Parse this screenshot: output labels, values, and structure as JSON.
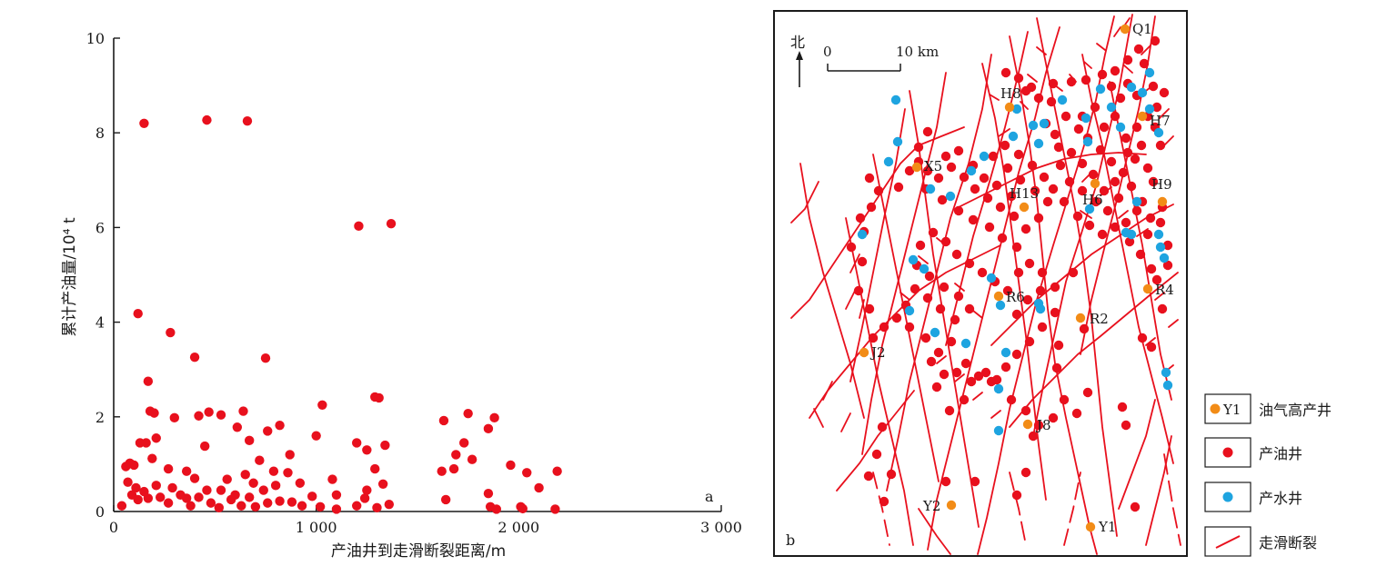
{
  "colors": {
    "oil_well": "#e8101d",
    "water_well": "#1ea4e0",
    "high_yield_well": "#f28c17",
    "fault": "#e8101d",
    "axis": "#1a1a1a"
  },
  "chart_data": [
    {
      "panel_label": "a",
      "type": "scatter",
      "title": "",
      "xlabel": "产油井到走滑断裂距离/m",
      "ylabel": "累计产油量/10⁴ t",
      "xlim": [
        0,
        3000
      ],
      "ylim": [
        0,
        10
      ],
      "xticks": [
        0,
        1000,
        2000,
        3000
      ],
      "xtick_labels": [
        "0",
        "1 000",
        "2 000",
        "3 000"
      ],
      "yticks": [
        0,
        2,
        4,
        6,
        8,
        10
      ],
      "ytick_labels": [
        "0",
        "2",
        "4",
        "6",
        "8",
        "10"
      ],
      "grid": false,
      "points": [
        [
          150,
          8.2
        ],
        [
          460,
          8.27
        ],
        [
          660,
          8.25
        ],
        [
          1210,
          6.03
        ],
        [
          1370,
          6.08
        ],
        [
          120,
          4.18
        ],
        [
          280,
          3.78
        ],
        [
          400,
          3.26
        ],
        [
          750,
          3.24
        ],
        [
          170,
          2.75
        ],
        [
          1030,
          2.25
        ],
        [
          1290,
          2.42
        ],
        [
          1310,
          2.4
        ],
        [
          180,
          2.12
        ],
        [
          200,
          2.08
        ],
        [
          420,
          2.02
        ],
        [
          470,
          2.1
        ],
        [
          530,
          2.04
        ],
        [
          640,
          2.12
        ],
        [
          1630,
          1.92
        ],
        [
          1750,
          2.07
        ],
        [
          1880,
          1.98
        ],
        [
          300,
          1.98
        ],
        [
          610,
          1.78
        ],
        [
          760,
          1.7
        ],
        [
          820,
          1.82
        ],
        [
          1000,
          1.6
        ],
        [
          1200,
          1.45
        ],
        [
          1250,
          1.3
        ],
        [
          1340,
          1.4
        ],
        [
          1690,
          1.2
        ],
        [
          1730,
          1.45
        ],
        [
          1850,
          1.75
        ],
        [
          130,
          1.45
        ],
        [
          160,
          1.45
        ],
        [
          210,
          1.55
        ],
        [
          450,
          1.38
        ],
        [
          670,
          1.5
        ],
        [
          870,
          1.2
        ],
        [
          60,
          0.95
        ],
        [
          80,
          1.02
        ],
        [
          100,
          0.98
        ],
        [
          190,
          1.12
        ],
        [
          270,
          0.9
        ],
        [
          360,
          0.85
        ],
        [
          720,
          1.08
        ],
        [
          790,
          0.85
        ],
        [
          860,
          0.82
        ],
        [
          1080,
          0.68
        ],
        [
          1290,
          0.9
        ],
        [
          1620,
          0.85
        ],
        [
          1680,
          0.9
        ],
        [
          1770,
          1.1
        ],
        [
          1960,
          0.98
        ],
        [
          2040,
          0.82
        ],
        [
          2190,
          0.85
        ],
        [
          70,
          0.62
        ],
        [
          110,
          0.5
        ],
        [
          150,
          0.42
        ],
        [
          210,
          0.55
        ],
        [
          290,
          0.5
        ],
        [
          360,
          0.28
        ],
        [
          400,
          0.7
        ],
        [
          460,
          0.45
        ],
        [
          530,
          0.45
        ],
        [
          560,
          0.68
        ],
        [
          600,
          0.35
        ],
        [
          650,
          0.78
        ],
        [
          690,
          0.6
        ],
        [
          740,
          0.45
        ],
        [
          800,
          0.55
        ],
        [
          920,
          0.6
        ],
        [
          980,
          0.32
        ],
        [
          1100,
          0.35
        ],
        [
          1250,
          0.45
        ],
        [
          1330,
          0.58
        ],
        [
          1850,
          0.38
        ],
        [
          2100,
          0.5
        ],
        [
          40,
          0.12
        ],
        [
          90,
          0.35
        ],
        [
          120,
          0.25
        ],
        [
          170,
          0.28
        ],
        [
          230,
          0.3
        ],
        [
          270,
          0.18
        ],
        [
          330,
          0.35
        ],
        [
          380,
          0.12
        ],
        [
          420,
          0.3
        ],
        [
          480,
          0.18
        ],
        [
          520,
          0.08
        ],
        [
          580,
          0.25
        ],
        [
          630,
          0.12
        ],
        [
          670,
          0.3
        ],
        [
          700,
          0.1
        ],
        [
          760,
          0.18
        ],
        [
          820,
          0.22
        ],
        [
          880,
          0.2
        ],
        [
          930,
          0.12
        ],
        [
          1020,
          0.1
        ],
        [
          1100,
          0.05
        ],
        [
          1200,
          0.12
        ],
        [
          1240,
          0.28
        ],
        [
          1300,
          0.08
        ],
        [
          1360,
          0.15
        ],
        [
          1640,
          0.25
        ],
        [
          1860,
          0.1
        ],
        [
          1890,
          0.05
        ],
        [
          2010,
          0.1
        ],
        [
          2020,
          0.06
        ],
        [
          2180,
          0.05
        ]
      ]
    },
    {
      "panel_label": "b",
      "type": "map",
      "north_label": "北",
      "scale_start": "0",
      "scale_end": "10 km",
      "well_labels": [
        "Q1",
        "H8",
        "H7",
        "X5",
        "H13",
        "H6",
        "H9",
        "R6",
        "R4",
        "R2",
        "J2",
        "J8",
        "Y2",
        "Y1"
      ],
      "legend": [
        {
          "symbol": "orange-dot",
          "code": "Y1",
          "label": "油气高产井"
        },
        {
          "symbol": "red-dot",
          "label": "产油井"
        },
        {
          "symbol": "blue-dot",
          "label": "产水井"
        },
        {
          "symbol": "fault-line",
          "label": "走滑断裂"
        }
      ]
    }
  ]
}
